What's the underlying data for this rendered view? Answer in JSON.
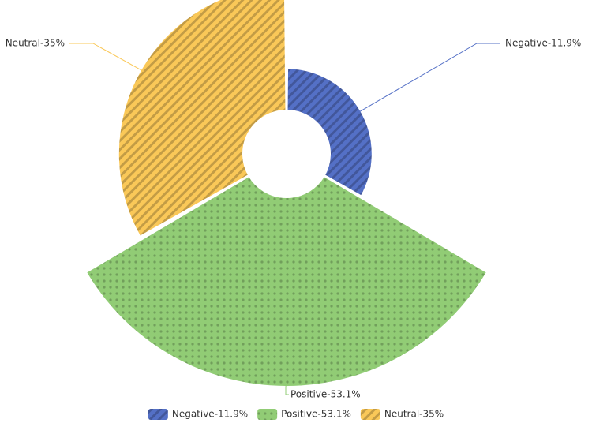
{
  "chart_data": {
    "type": "rose",
    "categories": [
      "Negative-11.9%",
      "Positive-53.1%",
      "Neutral-35%"
    ],
    "values": [
      11.9,
      53.1,
      35
    ],
    "colors": [
      "#5470c6",
      "#91cc75",
      "#fac858"
    ],
    "legend": "bottom"
  }
}
